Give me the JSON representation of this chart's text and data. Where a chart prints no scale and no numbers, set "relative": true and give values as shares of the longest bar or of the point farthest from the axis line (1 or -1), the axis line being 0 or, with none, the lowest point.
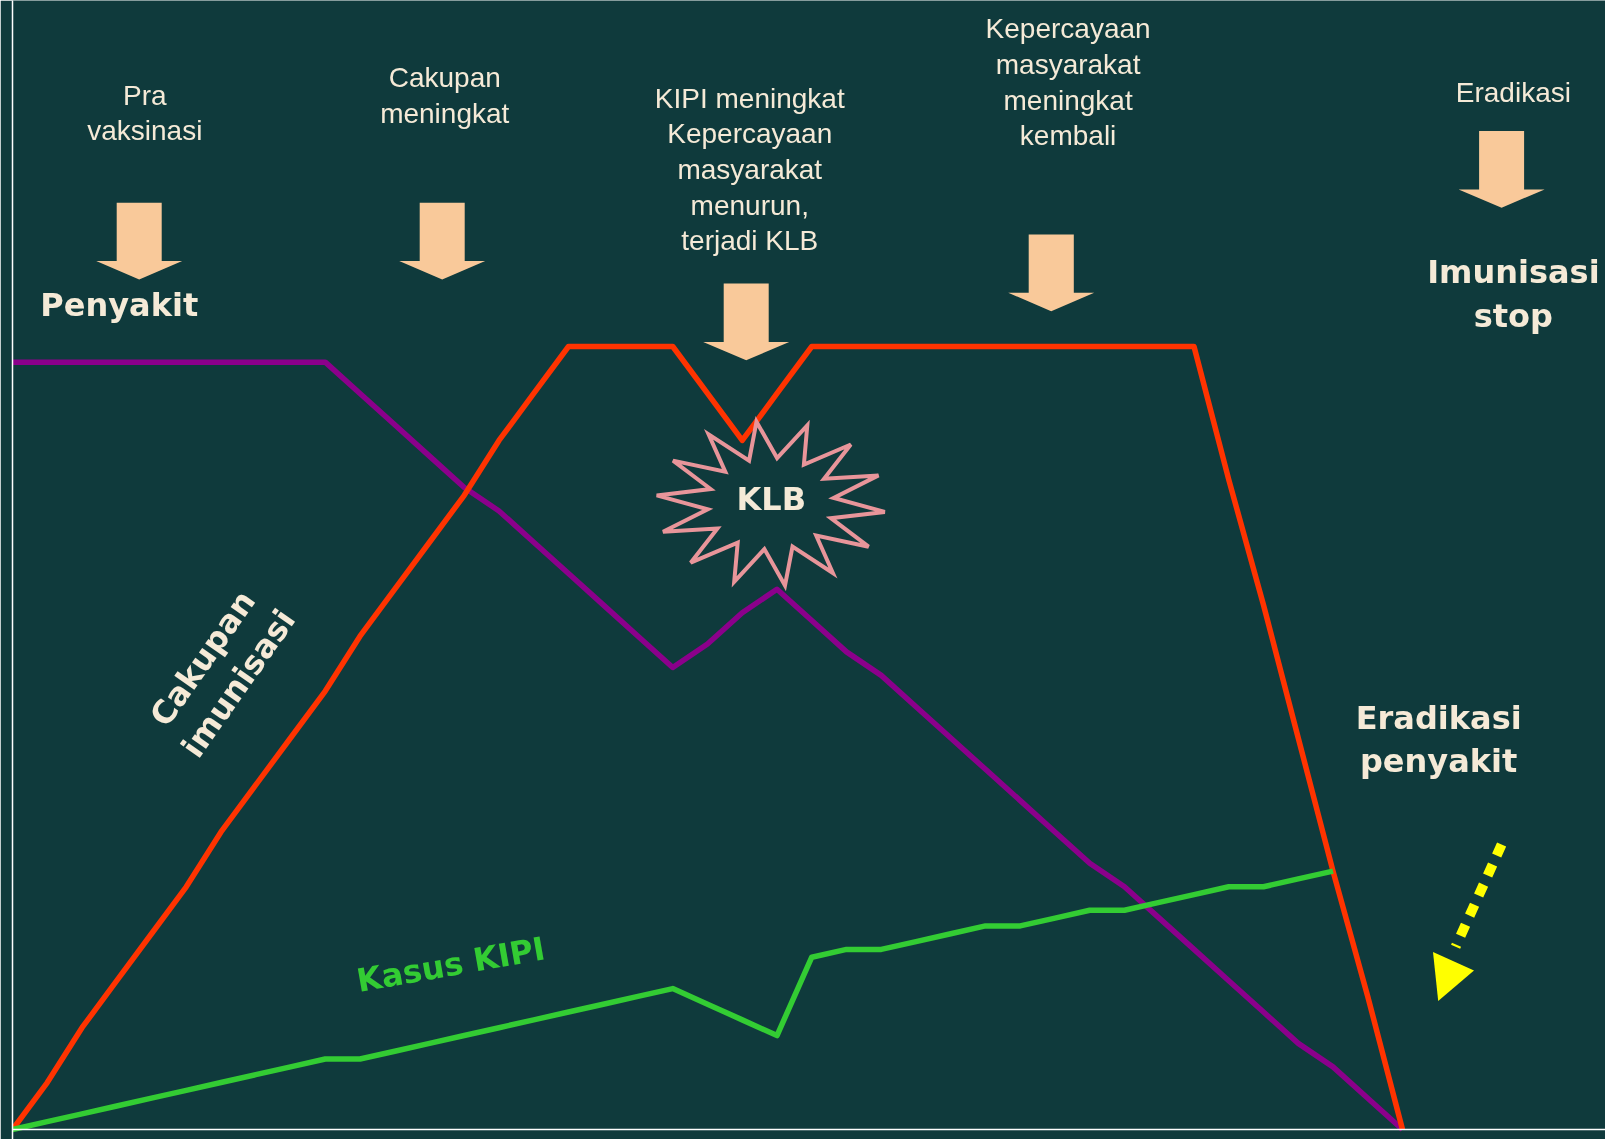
{
  "chart_data": {
    "type": "line",
    "relative": true,
    "marker": "none",
    "line_style": "solid",
    "categories": [
      null,
      null,
      null,
      null,
      null,
      null,
      null,
      null,
      null,
      null,
      null,
      null,
      null,
      null,
      null,
      null,
      null,
      null,
      null,
      null,
      null,
      null,
      null,
      null,
      null,
      null,
      null,
      null,
      null,
      null,
      null,
      null,
      null,
      null,
      null,
      null,
      null,
      null,
      null,
      null,
      null
    ],
    "series": [
      {
        "color": "#8b008b",
        "values": [
          0.98,
          0.98,
          0.98,
          0.98,
          0.98,
          0.98,
          0.98,
          0.98,
          0.98,
          0.98,
          0.94,
          0.9,
          0.86,
          0.82,
          0.79,
          0.75,
          0.71,
          0.67,
          0.63,
          0.59,
          0.62,
          0.66,
          0.69,
          0.65,
          0.61,
          0.58,
          0.54,
          0.5,
          0.46,
          0.42,
          0.38,
          0.34,
          0.31,
          0.27,
          0.23,
          0.19,
          0.15,
          0.11,
          0.08,
          0.04,
          0
        ]
      },
      {
        "color": "#ff3300",
        "values": [
          0,
          0.06,
          0.13,
          0.19,
          0.25,
          0.31,
          0.38,
          0.44,
          0.5,
          0.56,
          0.63,
          0.69,
          0.75,
          0.81,
          0.88,
          0.94,
          1,
          1,
          1,
          1,
          0.94,
          0.88,
          0.94,
          1,
          1,
          1,
          1,
          1,
          1,
          1,
          1,
          1,
          1,
          1,
          1,
          0.83,
          0.67,
          0.5,
          0.33,
          0.17,
          0
        ]
      },
      {
        "name": "Kasus KIPI",
        "color": "#33cc33",
        "values": [
          0,
          0.01,
          0.02,
          0.03,
          0.04,
          0.05,
          0.06,
          0.07,
          0.08,
          0.09,
          0.09,
          0.1,
          0.11,
          0.12,
          0.13,
          0.14,
          0.15,
          0.16,
          0.17,
          0.18,
          0.16,
          0.14,
          0.12,
          0.22,
          0.23,
          0.23,
          0.24,
          0.25,
          0.26,
          0.26,
          0.27,
          0.28,
          0.28,
          0.29,
          0.3,
          0.31,
          0.31,
          0.32,
          0.33,
          null,
          null
        ]
      }
    ],
    "annotations": [
      "Pra\nvaksinasi",
      "Cakupan\nmeningkat",
      "KIPI meningkat\nKepercayaan\nmasyarakat\nmenurun,\nterjadi KLB",
      "Kepercayaan\nmasyarakat\nmeningkat\nkembali",
      "Eradikasi",
      "Imunisasi\nstop",
      "Eradikasi\npenyakit",
      "KLB",
      "Penyakit",
      "Cakupan\nimunisasi"
    ]
  }
}
